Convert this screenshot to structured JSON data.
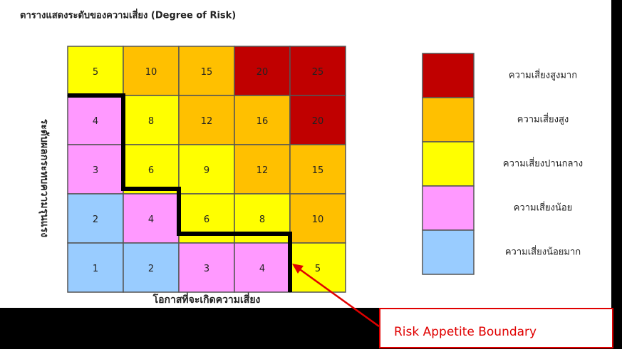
{
  "title": "ตารางแสดงระดับของความเสี่ยง (Degree of Risk)",
  "y_label": "ระดับผลกระทบความรุนแรง",
  "x_label": "โอกาสที่จะเกิดความเสี่ยง",
  "matrix": {
    "rows": [
      [
        "5",
        "10",
        "15",
        "20",
        "25"
      ],
      [
        "4",
        "8",
        "12",
        "16",
        "20"
      ],
      [
        "3",
        "6",
        "9",
        "12",
        "15"
      ],
      [
        "2",
        "4",
        "6",
        "8",
        "10"
      ],
      [
        "1",
        "2",
        "3",
        "4",
        "5"
      ]
    ],
    "colors": [
      [
        "#ffff00",
        "#ffc000",
        "#ffc000",
        "#c00000",
        "#c00000"
      ],
      [
        "#ff99ff",
        "#ffff00",
        "#ffc000",
        "#ffc000",
        "#c00000"
      ],
      [
        "#ff99ff",
        "#ffff00",
        "#ffff00",
        "#ffc000",
        "#ffc000"
      ],
      [
        "#99ccff",
        "#ff99ff",
        "#ffff00",
        "#ffff00",
        "#ffc000"
      ],
      [
        "#99ccff",
        "#99ccff",
        "#ff99ff",
        "#ff99ff",
        "#ffff00"
      ]
    ]
  },
  "legend": [
    {
      "name": "ความเสี่ยงสูงมาก",
      "color": "#c00000"
    },
    {
      "name": "ความเสี่ยงสูง",
      "color": "#ffc000"
    },
    {
      "name": "ความเสี่ยงปานกลาง",
      "color": "#ffff00"
    },
    {
      "name": "ความเสี่ยงน้อย",
      "color": "#ff99ff"
    },
    {
      "name": "ความเสี่ยงน้อยมาก",
      "color": "#99ccff"
    }
  ],
  "annotation": "Risk Appetite Boundary"
}
